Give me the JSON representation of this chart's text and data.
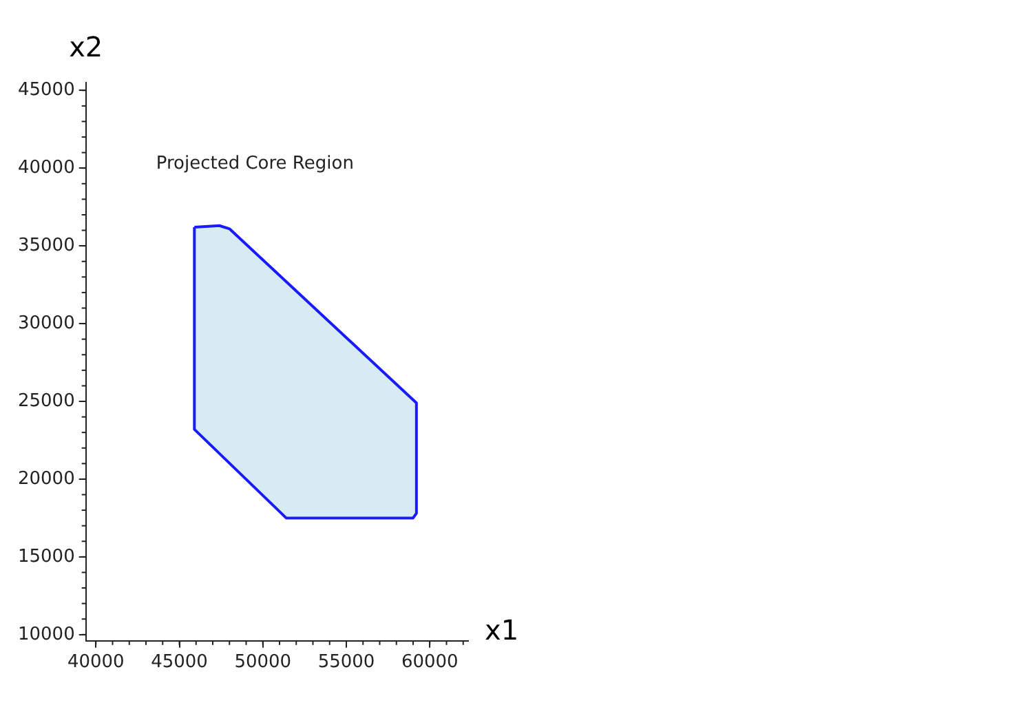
{
  "chart_data": {
    "type": "area",
    "xlabel": "x1",
    "ylabel": "x2",
    "xlim": [
      39400,
      62300
    ],
    "ylim": [
      9600,
      45500
    ],
    "xticks": [
      40000,
      45000,
      50000,
      55000,
      60000
    ],
    "yticks": [
      10000,
      15000,
      20000,
      25000,
      30000,
      35000,
      40000,
      45000
    ],
    "grid": false,
    "legend": false,
    "annotations": [
      "Projected Core Region"
    ],
    "series": [
      {
        "color": "#1a1aff",
        "x": [
          45900,
          47400,
          48000,
          59200,
          59200,
          59000,
          51400,
          45900,
          45900
        ],
        "values": [
          36200,
          36300,
          36100,
          24900,
          17800,
          17500,
          17500,
          23200,
          36200
        ]
      }
    ]
  }
}
